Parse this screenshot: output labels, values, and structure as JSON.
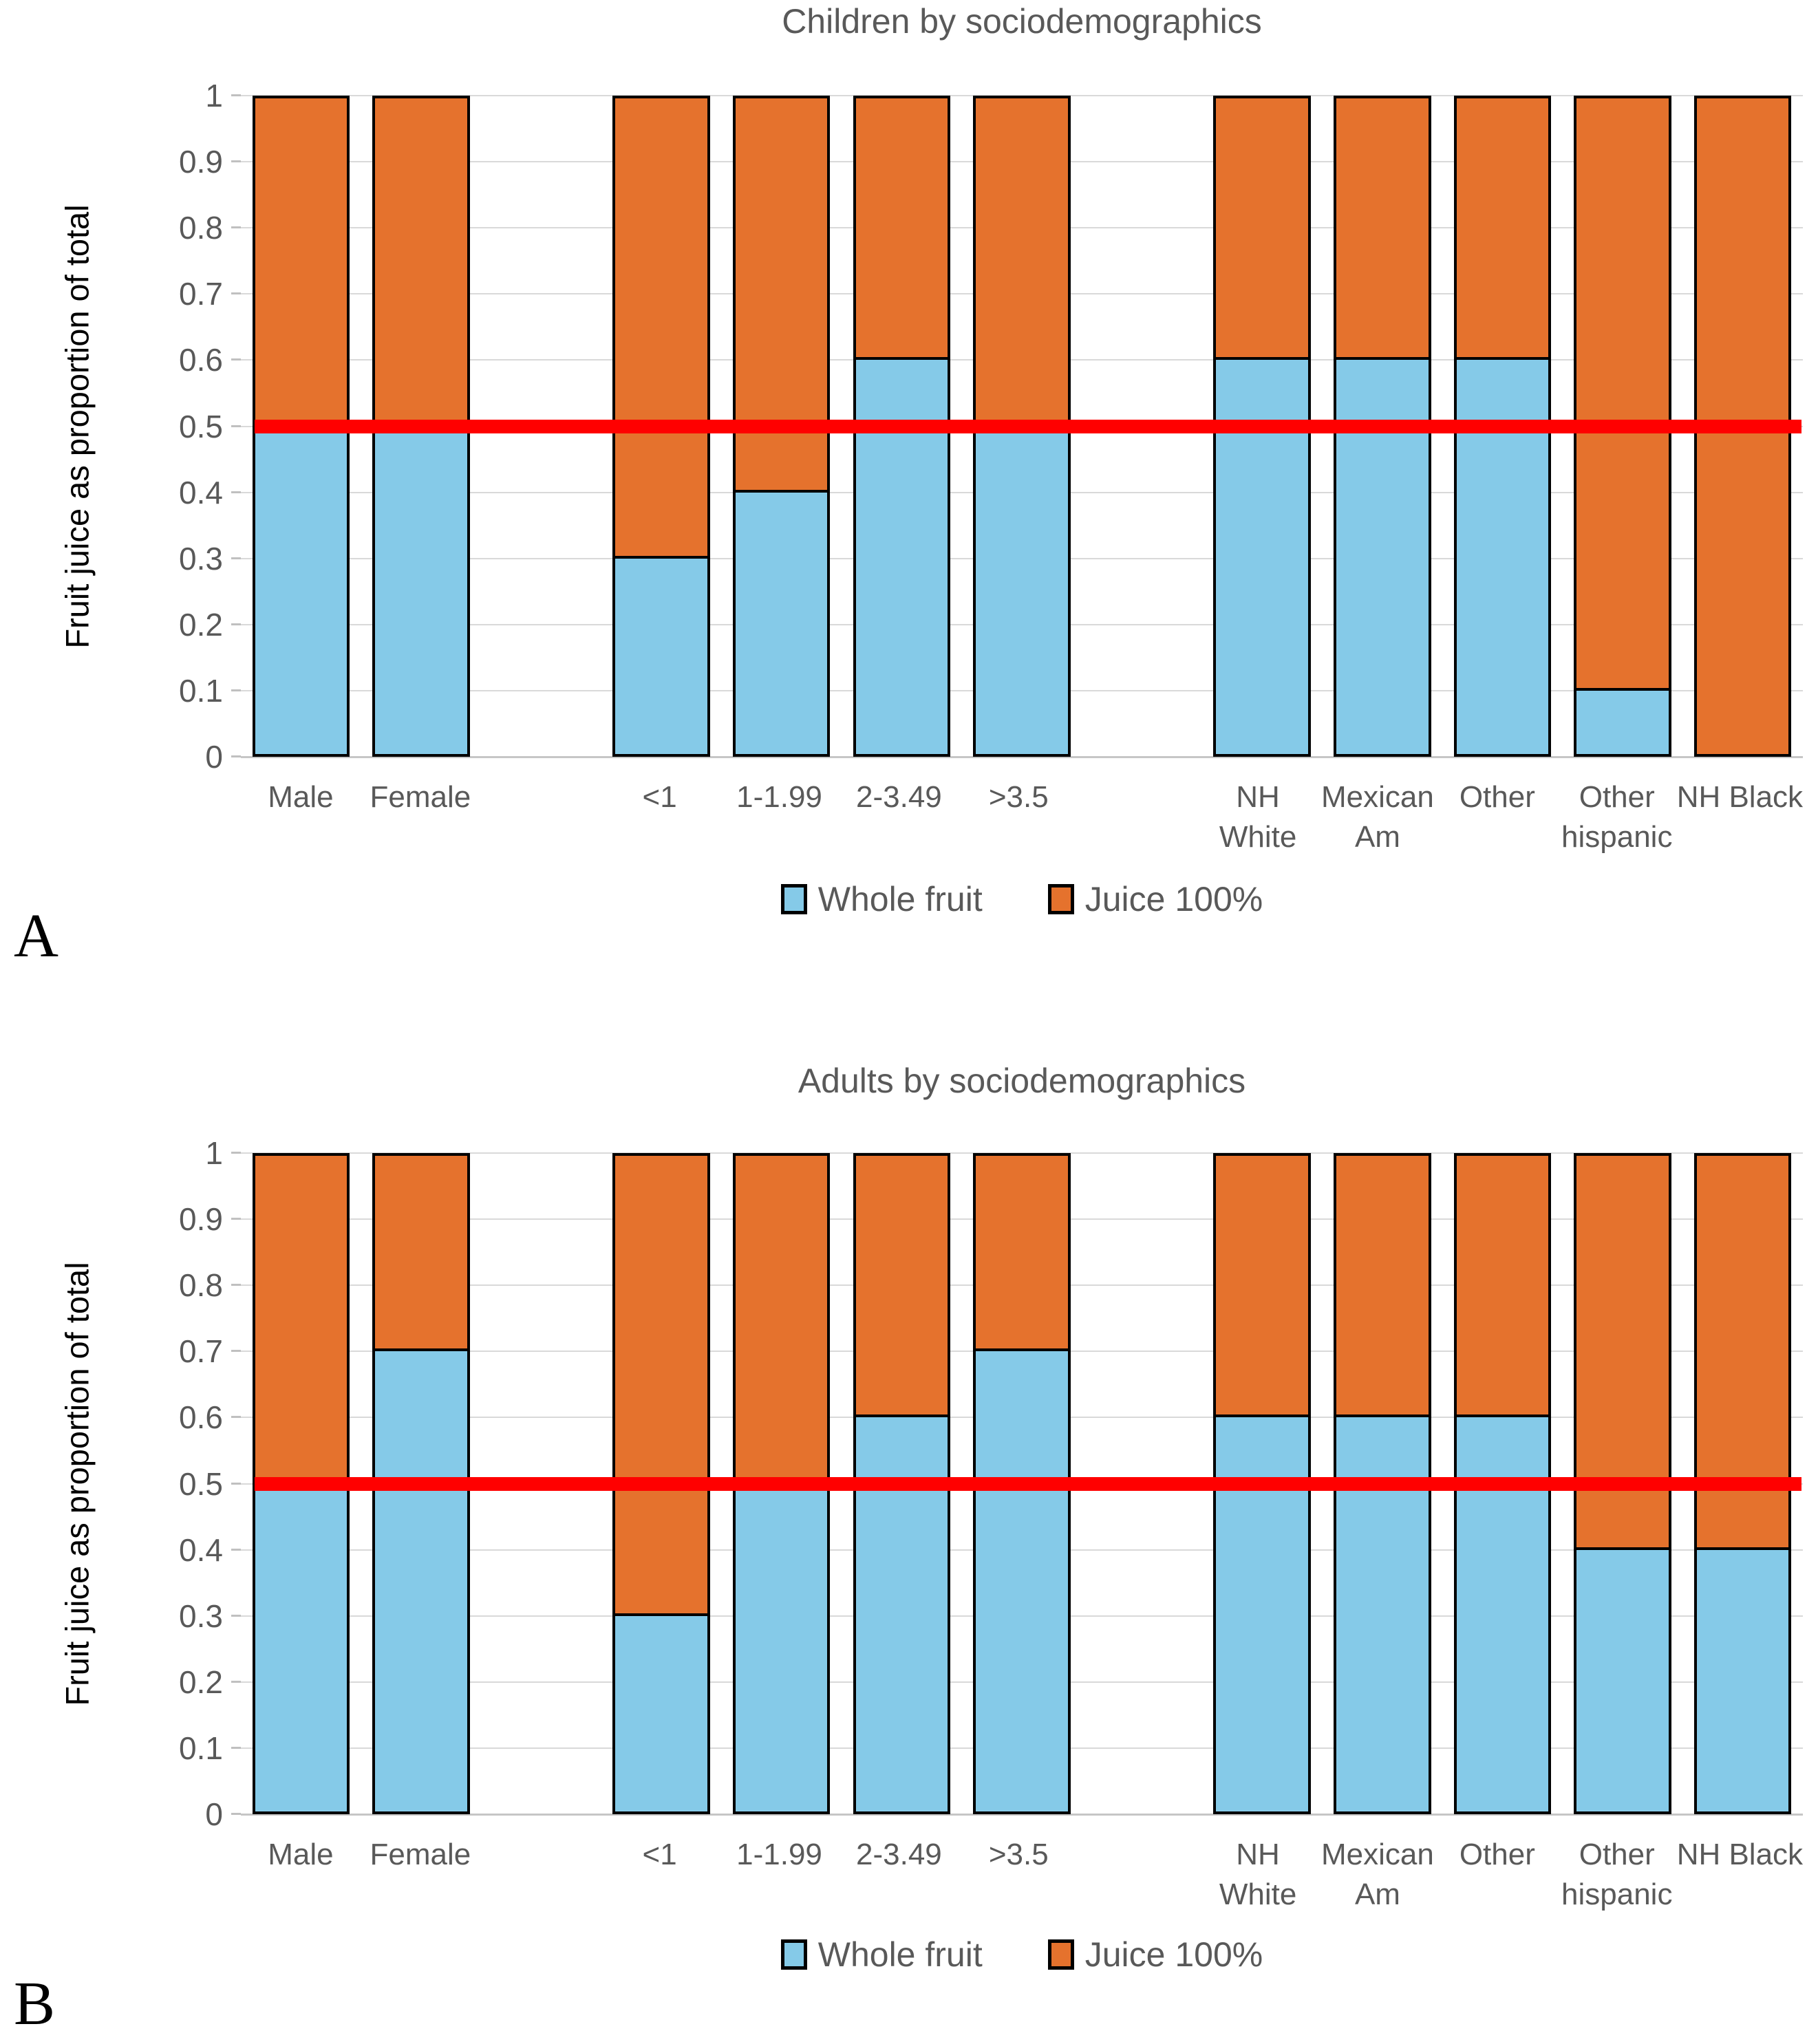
{
  "panels": [
    {
      "letter": "A"
    },
    {
      "letter": "B"
    }
  ],
  "chart_data": [
    {
      "type": "bar",
      "stacked": true,
      "title": "Children by sociodemographics",
      "ylabel": "Fruit juice as proportion of total",
      "xlabel": "",
      "categories": [
        "Male",
        "Female",
        "<1",
        "1-1.99",
        "2-3.49",
        ">3.5",
        "NH White",
        "Mexican Am",
        "Other",
        "Other hispanic",
        "NH Black"
      ],
      "group_sizes": [
        2,
        4,
        5
      ],
      "series": [
        {
          "name": "Whole fruit",
          "color": "#85CAE8",
          "values": [
            0.5,
            0.5,
            0.3,
            0.4,
            0.6,
            0.5,
            0.6,
            0.6,
            0.6,
            0.1,
            0.0
          ]
        },
        {
          "name": "Juice 100%",
          "color": "#E5722D",
          "values": [
            0.5,
            0.5,
            0.7,
            0.6,
            0.4,
            0.5,
            0.4,
            0.4,
            0.4,
            0.9,
            1.0
          ]
        }
      ],
      "ylim": [
        0,
        1
      ],
      "ytick_step": 0.1,
      "y_tick_labels": [
        "1",
        "0.9",
        "0.8",
        "0.7",
        "0.6",
        "0.5",
        "0.4",
        "0.3",
        "0.2",
        "0.1",
        "0"
      ],
      "grid": true,
      "legend_position": "bottom",
      "reference_line": {
        "value": 0.5,
        "color": "#FF0000"
      }
    },
    {
      "type": "bar",
      "stacked": true,
      "title": "Adults by sociodemographics",
      "ylabel": "Fruit juice as proportion of total",
      "xlabel": "",
      "categories": [
        "Male",
        "Female",
        "<1",
        "1-1.99",
        "2-3.49",
        ">3.5",
        "NH White",
        "Mexican Am",
        "Other",
        "Other hispanic",
        "NH Black"
      ],
      "group_sizes": [
        2,
        4,
        5
      ],
      "series": [
        {
          "name": "Whole fruit",
          "color": "#85CAE8",
          "values": [
            0.5,
            0.7,
            0.3,
            0.5,
            0.6,
            0.7,
            0.6,
            0.6,
            0.6,
            0.4,
            0.4
          ]
        },
        {
          "name": "Juice 100%",
          "color": "#E5722D",
          "values": [
            0.5,
            0.3,
            0.7,
            0.5,
            0.4,
            0.3,
            0.4,
            0.4,
            0.4,
            0.6,
            0.6
          ]
        }
      ],
      "ylim": [
        0,
        1
      ],
      "ytick_step": 0.1,
      "y_tick_labels": [
        "1",
        "0.9",
        "0.8",
        "0.7",
        "0.6",
        "0.5",
        "0.4",
        "0.3",
        "0.2",
        "0.1",
        "0"
      ],
      "grid": true,
      "legend_position": "bottom",
      "reference_line": {
        "value": 0.5,
        "color": "#FF0000"
      }
    }
  ],
  "colors": {
    "whole_fruit": "#85CAE8",
    "juice_100": "#E5722D",
    "reference_line": "#FF0000",
    "gridline": "#D9D9D9",
    "axis_text": "#595959",
    "bar_border": "#000000"
  }
}
